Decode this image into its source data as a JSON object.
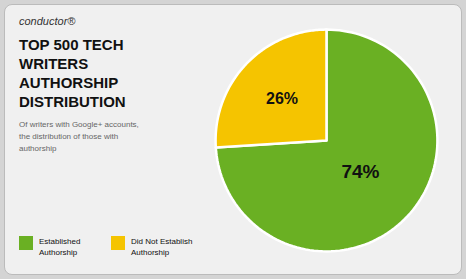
{
  "chart_data": {
    "type": "pie",
    "title": "TOP 500 TECH\nWRITERS\nAUTHORSHIP\nDISTRIBUTION",
    "subtitle": "Of writers with Google+ accounts,\nthe distribution of those with\nauthorship",
    "annotations": [
      "conductor®"
    ],
    "categories": [
      "Established\nAuthorship",
      "Did Not Establish\nAuthorship"
    ],
    "values": [
      74,
      26
    ],
    "value_labels": [
      "74%",
      "26%"
    ],
    "colors": [
      "#6ab023",
      "#f5c400"
    ],
    "data_labels": true,
    "legend": "bottom"
  }
}
